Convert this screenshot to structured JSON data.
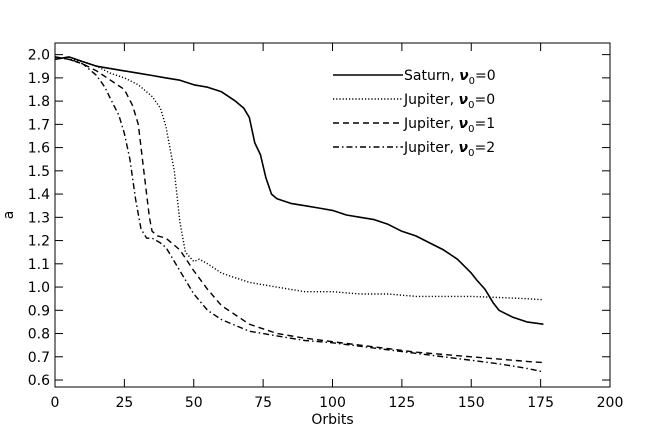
{
  "chart_data": {
    "type": "line",
    "title": "",
    "xlabel": "Orbits",
    "ylabel": "a",
    "xlim": [
      0,
      200
    ],
    "ylim": [
      0.57,
      2.05
    ],
    "x_ticks": [
      0,
      25,
      50,
      75,
      100,
      125,
      150,
      175,
      200
    ],
    "x_tick_labels": [
      "0",
      "25",
      "50",
      "75",
      "100",
      "125",
      "150",
      "175",
      "200"
    ],
    "y_ticks": [
      0.6,
      0.7,
      0.8,
      0.9,
      1.0,
      1.1,
      1.2,
      1.3,
      1.4,
      1.5,
      1.6,
      1.7,
      1.8,
      1.9,
      2.0
    ],
    "y_tick_labels": [
      "0.6",
      "0.7",
      "0.8",
      "0.9",
      "1.0",
      "1.1",
      "1.2",
      "1.3",
      "1.4",
      "1.5",
      "1.6",
      "1.7",
      "1.8",
      "1.9",
      "2.0"
    ],
    "grid": false,
    "legend_position": "top-right",
    "series": [
      {
        "name": "Saturn, ν₀=0",
        "name_main": "Saturn, ",
        "name_symbol": "ν",
        "name_sub": "0",
        "name_value": "=0",
        "style": "solid",
        "x": [
          0,
          5,
          10,
          15,
          20,
          25,
          30,
          35,
          40,
          45,
          50,
          55,
          60,
          65,
          68,
          70,
          72,
          74,
          76,
          78,
          80,
          85,
          90,
          95,
          100,
          105,
          110,
          115,
          120,
          125,
          130,
          135,
          140,
          145,
          150,
          152,
          155,
          158,
          160,
          165,
          170,
          176
        ],
        "y": [
          1.98,
          1.99,
          1.97,
          1.95,
          1.94,
          1.93,
          1.92,
          1.91,
          1.9,
          1.89,
          1.87,
          1.86,
          1.84,
          1.8,
          1.77,
          1.73,
          1.62,
          1.57,
          1.47,
          1.4,
          1.38,
          1.36,
          1.35,
          1.34,
          1.33,
          1.31,
          1.3,
          1.29,
          1.27,
          1.24,
          1.22,
          1.19,
          1.16,
          1.12,
          1.06,
          1.03,
          0.99,
          0.93,
          0.9,
          0.87,
          0.85,
          0.84
        ]
      },
      {
        "name": "Jupiter, ν₀=0",
        "name_main": "Jupiter, ",
        "name_symbol": "ν",
        "name_sub": "0",
        "name_value": "=0",
        "style": "dotted",
        "x": [
          0,
          5,
          10,
          15,
          20,
          25,
          30,
          33,
          35,
          38,
          40,
          42,
          43,
          45,
          47,
          50,
          52,
          55,
          60,
          65,
          70,
          80,
          90,
          100,
          110,
          120,
          130,
          140,
          150,
          160,
          170,
          176
        ],
        "y": [
          1.99,
          1.98,
          1.97,
          1.95,
          1.92,
          1.9,
          1.87,
          1.84,
          1.82,
          1.77,
          1.69,
          1.56,
          1.5,
          1.28,
          1.15,
          1.11,
          1.12,
          1.1,
          1.06,
          1.04,
          1.02,
          1.0,
          0.98,
          0.98,
          0.97,
          0.97,
          0.96,
          0.96,
          0.96,
          0.955,
          0.95,
          0.945
        ]
      },
      {
        "name": "Jupiter, ν₀=1",
        "name_main": "Jupiter, ",
        "name_symbol": "ν",
        "name_sub": "0",
        "name_value": "=1",
        "style": "dashed",
        "x": [
          0,
          5,
          10,
          15,
          20,
          25,
          28,
          30,
          32,
          34,
          35,
          37,
          40,
          45,
          50,
          55,
          60,
          70,
          80,
          90,
          100,
          110,
          120,
          130,
          140,
          150,
          160,
          170,
          176
        ],
        "y": [
          1.99,
          1.98,
          1.96,
          1.93,
          1.89,
          1.85,
          1.78,
          1.7,
          1.5,
          1.3,
          1.24,
          1.22,
          1.21,
          1.16,
          1.07,
          0.99,
          0.92,
          0.84,
          0.8,
          0.78,
          0.765,
          0.75,
          0.735,
          0.72,
          0.71,
          0.7,
          0.69,
          0.68,
          0.675
        ]
      },
      {
        "name": "Jupiter, ν₀=2",
        "name_main": "Jupiter, ",
        "name_symbol": "ν",
        "name_sub": "0",
        "name_value": "=2",
        "style": "dashdot",
        "x": [
          0,
          5,
          10,
          15,
          18,
          20,
          23,
          25,
          27,
          29,
          31,
          33,
          35,
          38,
          40,
          45,
          50,
          55,
          60,
          70,
          80,
          90,
          100,
          110,
          120,
          130,
          140,
          150,
          160,
          170,
          176
        ],
        "y": [
          1.99,
          1.98,
          1.96,
          1.91,
          1.86,
          1.81,
          1.74,
          1.66,
          1.55,
          1.38,
          1.25,
          1.21,
          1.21,
          1.19,
          1.17,
          1.07,
          0.97,
          0.9,
          0.86,
          0.81,
          0.79,
          0.77,
          0.76,
          0.745,
          0.73,
          0.715,
          0.7,
          0.685,
          0.67,
          0.65,
          0.635
        ]
      }
    ]
  }
}
